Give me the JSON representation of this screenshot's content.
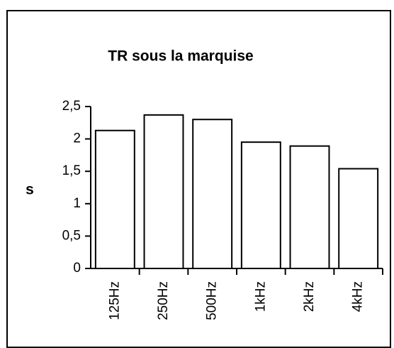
{
  "chart_data": {
    "type": "bar",
    "title": "TR sous la marquise",
    "y_label": "s",
    "categories": [
      "125Hz",
      "250Hz",
      "500Hz",
      "1kHz",
      "2kHz",
      "4kHz"
    ],
    "values": [
      2.13,
      2.37,
      2.3,
      1.95,
      1.89,
      1.54
    ],
    "color": "#ffffff",
    "ylim": [
      0,
      2.5
    ],
    "yticks": [
      0,
      {
        "value": 0.5,
        "label": "0,5"
      },
      1,
      {
        "value": 1.5,
        "label": "1,5"
      },
      2,
      {
        "value": 2.5,
        "label": "2,5"
      }
    ],
    "grid": false
  }
}
